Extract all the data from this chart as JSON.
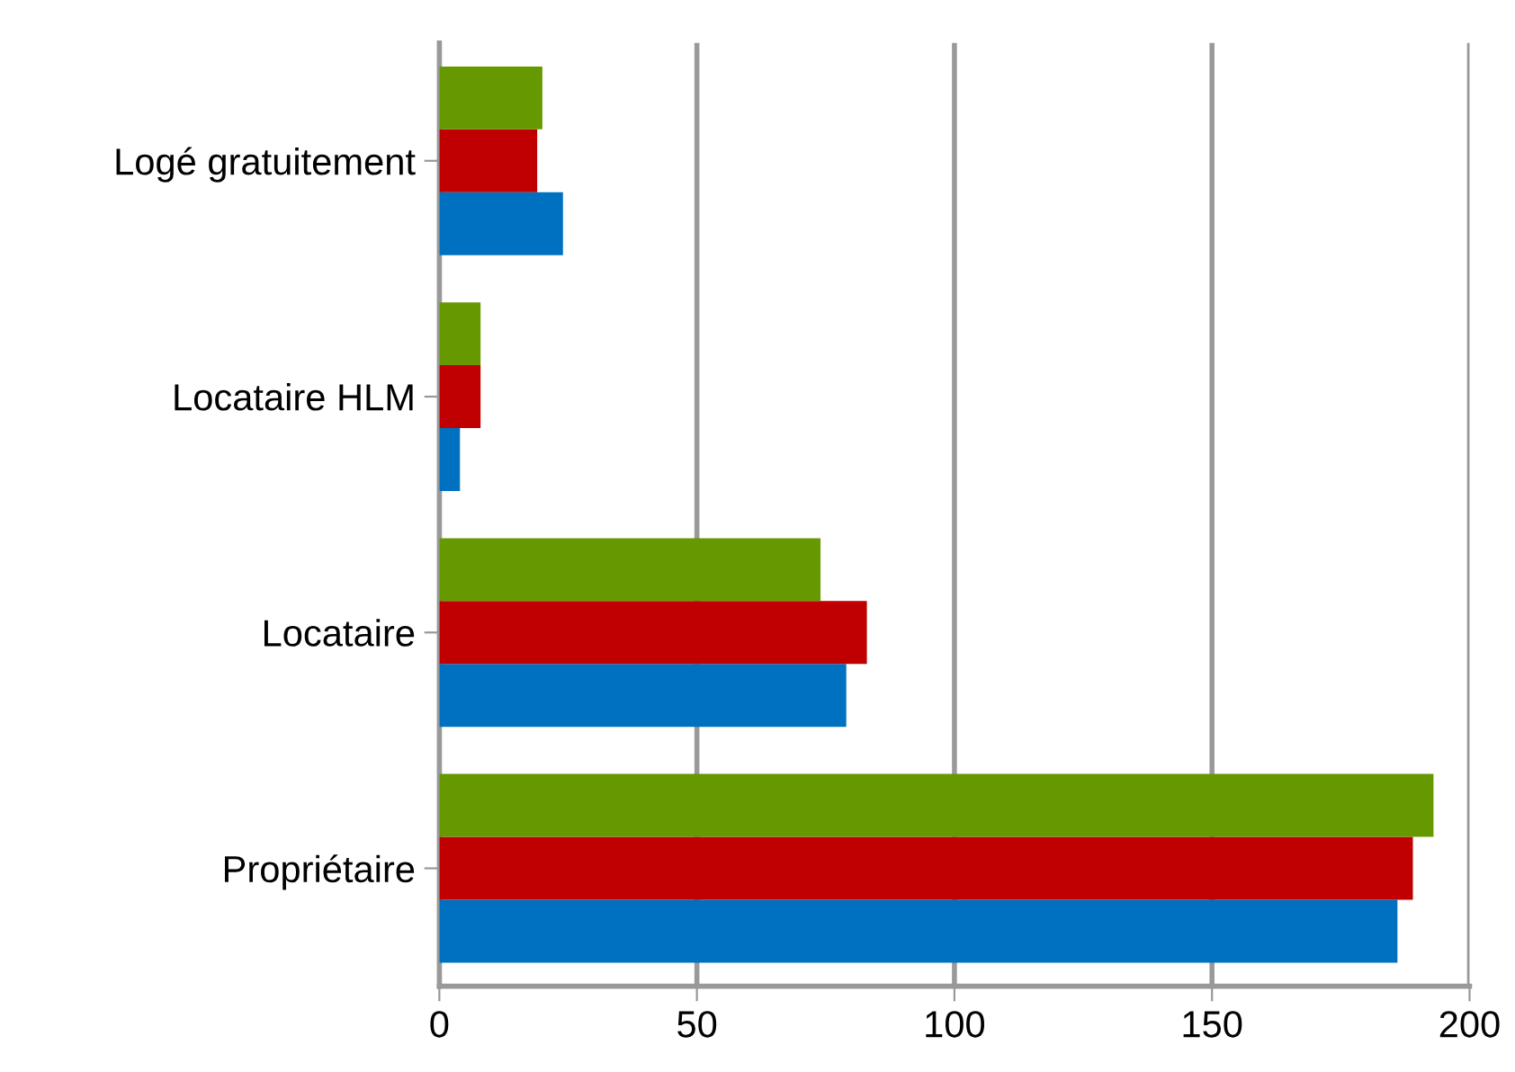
{
  "chart_data": {
    "type": "bar",
    "orientation": "horizontal",
    "categories": [
      "Logé gratuitement",
      "Locataire HLM",
      "Locataire",
      "Propriétaire"
    ],
    "series": [
      {
        "color": "#0070c0",
        "values": [
          24,
          4,
          79,
          186
        ]
      },
      {
        "color": "#c00000",
        "values": [
          19,
          8,
          83,
          189
        ]
      },
      {
        "color": "#669900",
        "values": [
          20,
          8,
          74,
          193
        ]
      }
    ],
    "xlim": [
      0,
      200
    ],
    "xticks": [
      0,
      50,
      100,
      150,
      200
    ],
    "grid": "x"
  }
}
